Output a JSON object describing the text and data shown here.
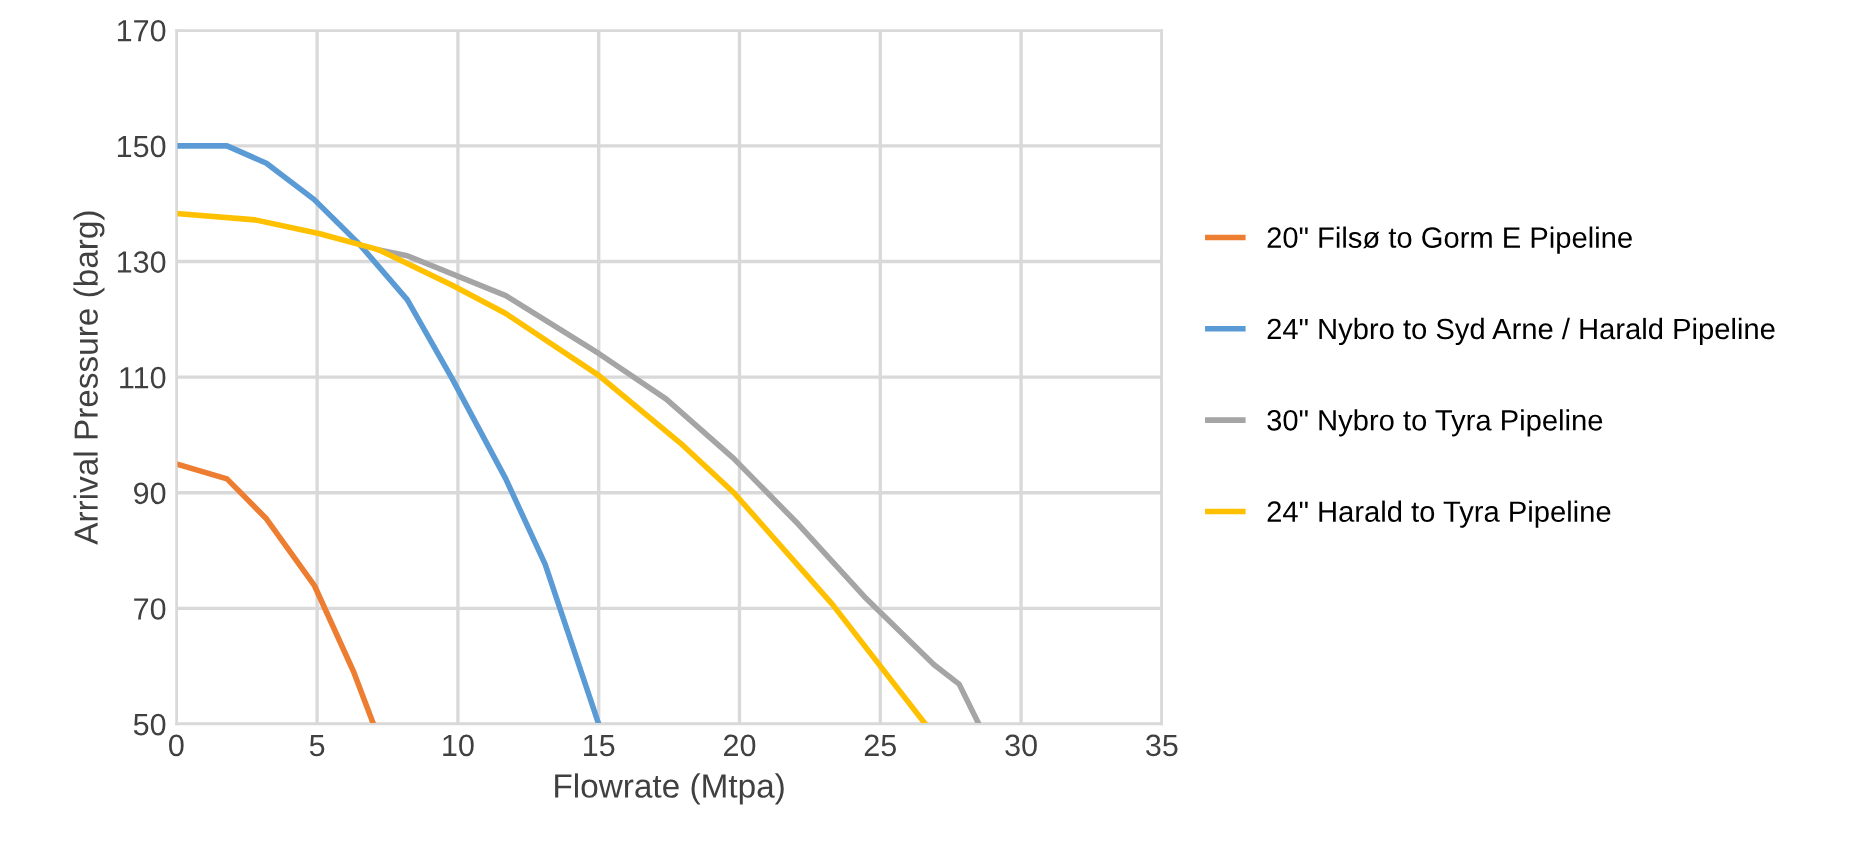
{
  "chart_data": {
    "type": "line",
    "xlabel": "Flowrate (Mtpa)",
    "ylabel": "Arrival Pressure (barg)",
    "xlim": [
      0,
      35
    ],
    "xticks": [
      0,
      5,
      10,
      15,
      20,
      25,
      30,
      35
    ],
    "ylim": [
      50,
      170
    ],
    "yticks": [
      50,
      70,
      90,
      110,
      130,
      150,
      170
    ],
    "grid": true,
    "legend": "right",
    "marker": "none",
    "line_style": "solid",
    "series": [
      {
        "name": "20\" Filsø to Gorm E Pipeline",
        "color": "#ed7d31",
        "x": [
          0,
          1.8,
          3.2,
          4.9,
          6.3,
          7.0
        ],
        "values": [
          95,
          92.4,
          85.5,
          74,
          59,
          50
        ]
      },
      {
        "name": "24\" Nybro to Syd Arne / Harald Pipeline",
        "color": "#5b9bd5",
        "x": [
          0,
          1.8,
          3.2,
          4.9,
          6.5,
          8.2,
          9.8,
          11.7,
          13.1,
          15
        ],
        "values": [
          150,
          150,
          147,
          140.7,
          133,
          123.4,
          109.7,
          92.4,
          77.6,
          50
        ]
      },
      {
        "name": "30\" Nybro to Tyra Pipeline",
        "color": "#a5a5a5",
        "x": [
          7.2,
          8.2,
          11.7,
          15,
          17.4,
          19.8,
          22.1,
          24.5,
          26.9,
          27.8,
          28.5
        ],
        "values": [
          132,
          131,
          124.1,
          114.1,
          106.2,
          95.9,
          84.5,
          71.7,
          60.3,
          56.9,
          50
        ]
      },
      {
        "name": "24\" Harald to Tyra Pipeline",
        "color": "#ffc000",
        "x": [
          0,
          2.8,
          5.1,
          7.2,
          9.8,
          11.7,
          15,
          17.9,
          19.8,
          23.3,
          26.6
        ],
        "values": [
          138.3,
          137.2,
          134.8,
          132,
          125.9,
          121,
          110.3,
          98.6,
          90,
          70.7,
          50
        ]
      }
    ]
  }
}
